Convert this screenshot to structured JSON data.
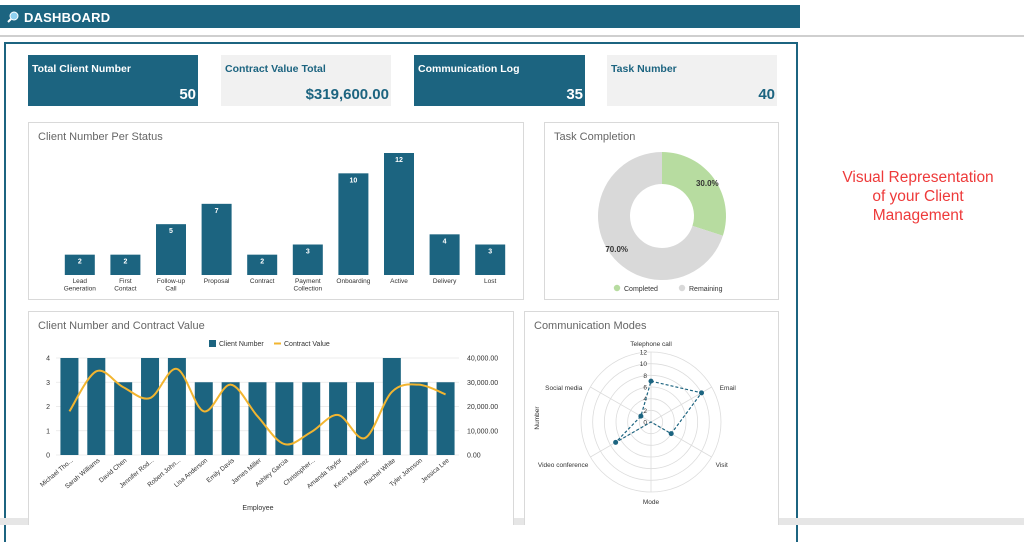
{
  "header": {
    "title": "DASHBOARD"
  },
  "kpis": [
    {
      "label": "Total Client Number",
      "value": "50"
    },
    {
      "label": "Contract Value Total",
      "value": "$319,600.00"
    },
    {
      "label": "Communication Log",
      "value": "35"
    },
    {
      "label": "Task Number",
      "value": "40"
    }
  ],
  "side_note": "Visual Representation of your Client Management",
  "colors": {
    "primary": "#1c6480",
    "line": "#f2b530",
    "donut_done": "#b7dca0",
    "donut_rest": "#d9d9d9",
    "accent_text": "#ee3a3a"
  },
  "chart_data": [
    {
      "type": "bar",
      "title": "Client Number Per Status",
      "categories": [
        "Lead Generation",
        "First Contact",
        "Follow-up Call",
        "Proposal",
        "Contract",
        "Payment Collection",
        "Onboarding",
        "Active",
        "Delivery",
        "Lost"
      ],
      "values": [
        2,
        2,
        5,
        7,
        2,
        3,
        10,
        12,
        4,
        3
      ],
      "ylim": [
        0,
        12
      ],
      "data_labels": true
    },
    {
      "type": "pie",
      "title": "Task Completion",
      "labels": [
        "Completed",
        "Remaining"
      ],
      "values": [
        30.0,
        70.0
      ],
      "data_labels": [
        "30.0%",
        "70.0%"
      ],
      "legend": "bottom"
    },
    {
      "type": "bar",
      "title": "Client Number and Contract Value",
      "xlabel": "Employee",
      "categories": [
        "Michael Tho...",
        "Sarah Williams",
        "David Chen",
        "Jennifer Rod...",
        "Robert John...",
        "Lisa Anderson",
        "Emily Davis",
        "James Miller",
        "Ashley Garcia",
        "Christopher...",
        "Amanda Taylor",
        "Kevin Martinez",
        "Rachel White",
        "Tyler Johnson",
        "Jessica Lee"
      ],
      "series": [
        {
          "name": "Client Number",
          "type": "bar",
          "axis": "left",
          "values": [
            4,
            4,
            3,
            4,
            4,
            3,
            3,
            3,
            3,
            3,
            3,
            3,
            4,
            3,
            3
          ]
        },
        {
          "name": "Contract Value",
          "type": "line",
          "axis": "right",
          "values": [
            18000,
            34500,
            28000,
            23500,
            35500,
            18000,
            29000,
            16000,
            4500,
            9500,
            16500,
            7000,
            26000,
            29000,
            25000
          ]
        }
      ],
      "ylim_left": [
        0,
        4
      ],
      "yticks_left": [
        "0",
        "1",
        "2",
        "3",
        "4"
      ],
      "ylim_right": [
        0,
        40000
      ],
      "yticks_right": [
        "0.00",
        "10,000.00",
        "20,000.00",
        "30,000.00",
        "40,000.00"
      ],
      "legend": "top"
    },
    {
      "type": "radar",
      "title": "Communication Modes",
      "axes": [
        "Telephone call",
        "Email",
        "Visit",
        "Mode",
        "Video conference",
        "Social media"
      ],
      "values": [
        7,
        10,
        4,
        0,
        7,
        2
      ],
      "rlim": [
        0,
        12
      ],
      "rticks": [
        "0",
        "2",
        "4",
        "6",
        "8",
        "10",
        "12"
      ],
      "rlabel": "Number"
    }
  ]
}
